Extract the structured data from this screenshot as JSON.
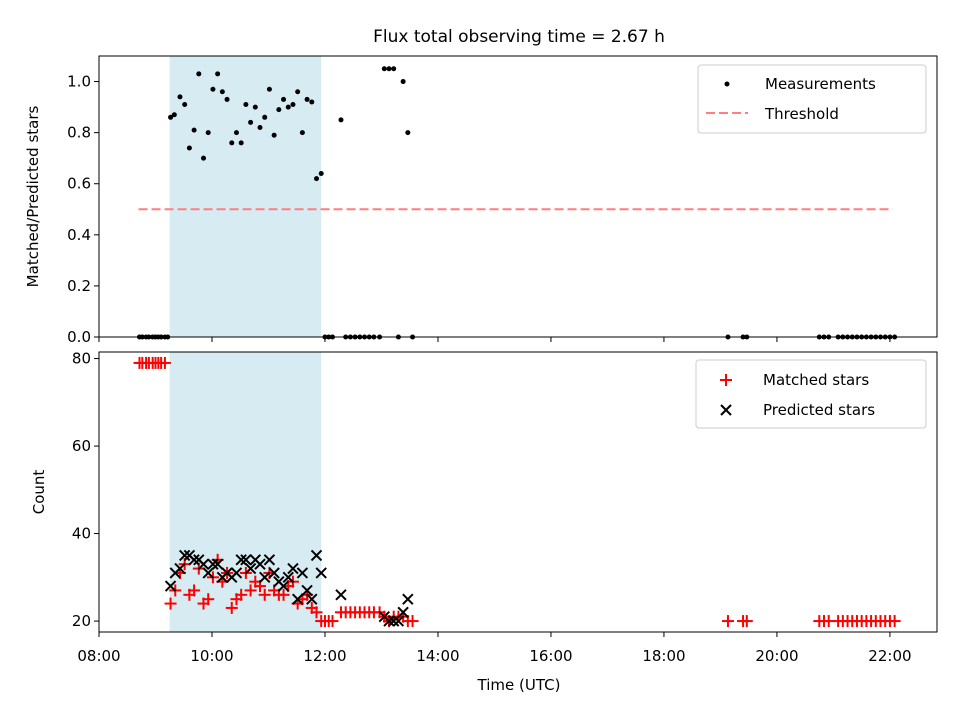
{
  "colors": {
    "measure": "#000000",
    "threshold": "#ff7f7f",
    "matched": "#ff0000",
    "predicted": "#000000",
    "span": "#add8e6"
  },
  "chart_data": [
    {
      "type": "scatter",
      "title": "Flux total observing time = 2.67 h",
      "xlabel": "",
      "ylabel": "Matched/Predicted stars",
      "xlim": [
        "08:00",
        "22:50"
      ],
      "ylim": [
        0,
        1.1
      ],
      "yticks": [
        "0.0",
        "0.2",
        "0.4",
        "0.6",
        "0.8",
        "1.0"
      ],
      "legend": {
        "position": "top-right",
        "entries": [
          "Measurements",
          "Threshold"
        ]
      },
      "highlight_span": [
        "09:15",
        "11:56"
      ],
      "threshold": {
        "value": 0.5,
        "x": [
          "08:42",
          "22:03"
        ]
      },
      "series": [
        {
          "name": "Measurements",
          "marker": "dot",
          "points": [
            [
              "08:43",
              0
            ],
            [
              "08:46",
              0
            ],
            [
              "08:50",
              0
            ],
            [
              "08:53",
              0
            ],
            [
              "08:57",
              0
            ],
            [
              "09:00",
              0
            ],
            [
              "09:03",
              0
            ],
            [
              "09:06",
              0
            ],
            [
              "09:10",
              0
            ],
            [
              "09:13",
              0
            ],
            [
              "09:16",
              0.86
            ],
            [
              "09:20",
              0.87
            ],
            [
              "09:26",
              0.94
            ],
            [
              "09:31",
              0.91
            ],
            [
              "09:36",
              0.74
            ],
            [
              "09:41",
              0.81
            ],
            [
              "09:46",
              1.03
            ],
            [
              "09:51",
              0.7
            ],
            [
              "09:56",
              0.8
            ],
            [
              "10:01",
              0.97
            ],
            [
              "10:06",
              1.03
            ],
            [
              "10:11",
              0.96
            ],
            [
              "10:16",
              0.93
            ],
            [
              "10:21",
              0.76
            ],
            [
              "10:26",
              0.8
            ],
            [
              "10:31",
              0.76
            ],
            [
              "10:36",
              0.91
            ],
            [
              "10:41",
              0.84
            ],
            [
              "10:46",
              0.9
            ],
            [
              "10:51",
              0.82
            ],
            [
              "10:56",
              0.86
            ],
            [
              "11:01",
              0.97
            ],
            [
              "11:06",
              0.79
            ],
            [
              "11:11",
              0.89
            ],
            [
              "11:16",
              0.93
            ],
            [
              "11:21",
              0.9
            ],
            [
              "11:26",
              0.91
            ],
            [
              "11:31",
              0.96
            ],
            [
              "11:36",
              0.8
            ],
            [
              "11:41",
              0.93
            ],
            [
              "11:46",
              0.92
            ],
            [
              "11:51",
              0.62
            ],
            [
              "11:56",
              0.64
            ],
            [
              "12:00",
              0
            ],
            [
              "12:04",
              0
            ],
            [
              "12:08",
              0
            ],
            [
              "12:17",
              0.85
            ],
            [
              "12:22",
              0
            ],
            [
              "12:27",
              0
            ],
            [
              "12:32",
              0
            ],
            [
              "12:37",
              0
            ],
            [
              "12:42",
              0
            ],
            [
              "12:47",
              0
            ],
            [
              "12:52",
              0
            ],
            [
              "12:58",
              0
            ],
            [
              "13:03",
              1.05
            ],
            [
              "13:08",
              1.05
            ],
            [
              "13:13",
              1.05
            ],
            [
              "13:18",
              0
            ],
            [
              "13:23",
              1.0
            ],
            [
              "13:28",
              0.8
            ],
            [
              "13:33",
              0
            ],
            [
              "19:08",
              0
            ],
            [
              "19:24",
              0
            ],
            [
              "19:28",
              0
            ],
            [
              "20:45",
              0
            ],
            [
              "20:50",
              0
            ],
            [
              "20:55",
              0
            ],
            [
              "21:05",
              0
            ],
            [
              "21:10",
              0
            ],
            [
              "21:15",
              0
            ],
            [
              "21:20",
              0
            ],
            [
              "21:25",
              0
            ],
            [
              "21:30",
              0
            ],
            [
              "21:35",
              0
            ],
            [
              "21:40",
              0
            ],
            [
              "21:45",
              0
            ],
            [
              "21:50",
              0
            ],
            [
              "21:55",
              0
            ],
            [
              "22:00",
              0
            ],
            [
              "22:05",
              0
            ]
          ]
        }
      ]
    },
    {
      "type": "scatter",
      "title": "",
      "xlabel": "Time (UTC)",
      "ylabel": "Count",
      "xlim": [
        "08:00",
        "22:50"
      ],
      "ylim": [
        17.5,
        81.5
      ],
      "xticks": [
        "08:00",
        "10:00",
        "12:00",
        "14:00",
        "16:00",
        "18:00",
        "20:00",
        "22:00"
      ],
      "yticks": [
        "20",
        "40",
        "60",
        "80"
      ],
      "legend": {
        "position": "top-right",
        "entries": [
          "Matched stars",
          "Predicted stars"
        ]
      },
      "highlight_span": [
        "09:15",
        "11:56"
      ],
      "series": [
        {
          "name": "Matched stars",
          "marker": "plus",
          "points": [
            [
              "08:43",
              79
            ],
            [
              "08:46",
              79
            ],
            [
              "08:50",
              79
            ],
            [
              "08:53",
              79
            ],
            [
              "08:57",
              79
            ],
            [
              "09:00",
              79
            ],
            [
              "09:03",
              79
            ],
            [
              "09:06",
              79
            ],
            [
              "09:10",
              79
            ],
            [
              "09:16",
              24
            ],
            [
              "09:21",
              27
            ],
            [
              "09:26",
              31
            ],
            [
              "09:31",
              33
            ],
            [
              "09:36",
              26
            ],
            [
              "09:41",
              27
            ],
            [
              "09:46",
              32
            ],
            [
              "09:51",
              24
            ],
            [
              "09:56",
              25
            ],
            [
              "10:01",
              30
            ],
            [
              "10:06",
              34
            ],
            [
              "10:11",
              29
            ],
            [
              "10:16",
              31
            ],
            [
              "10:21",
              23
            ],
            [
              "10:26",
              25
            ],
            [
              "10:31",
              26
            ],
            [
              "10:36",
              31
            ],
            [
              "10:41",
              27
            ],
            [
              "10:46",
              29
            ],
            [
              "10:51",
              28
            ],
            [
              "10:56",
              26
            ],
            [
              "11:01",
              31
            ],
            [
              "11:06",
              27
            ],
            [
              "11:11",
              26
            ],
            [
              "11:16",
              26
            ],
            [
              "11:21",
              28
            ],
            [
              "11:26",
              29
            ],
            [
              "11:31",
              24
            ],
            [
              "11:36",
              25
            ],
            [
              "11:41",
              26
            ],
            [
              "11:46",
              23
            ],
            [
              "11:51",
              22
            ],
            [
              "11:56",
              20
            ],
            [
              "12:00",
              20
            ],
            [
              "12:04",
              20
            ],
            [
              "12:08",
              20
            ],
            [
              "12:17",
              22
            ],
            [
              "12:22",
              22
            ],
            [
              "12:27",
              22
            ],
            [
              "12:32",
              22
            ],
            [
              "12:37",
              22
            ],
            [
              "12:42",
              22
            ],
            [
              "12:47",
              22
            ],
            [
              "12:52",
              22
            ],
            [
              "12:58",
              22
            ],
            [
              "13:03",
              21
            ],
            [
              "13:08",
              20
            ],
            [
              "13:13",
              21
            ],
            [
              "13:18",
              21
            ],
            [
              "13:23",
              21
            ],
            [
              "13:28",
              20
            ],
            [
              "13:33",
              20
            ],
            [
              "19:08",
              20
            ],
            [
              "19:24",
              20
            ],
            [
              "19:28",
              20
            ],
            [
              "20:45",
              20
            ],
            [
              "20:50",
              20
            ],
            [
              "20:55",
              20
            ],
            [
              "21:05",
              20
            ],
            [
              "21:10",
              20
            ],
            [
              "21:15",
              20
            ],
            [
              "21:20",
              20
            ],
            [
              "21:25",
              20
            ],
            [
              "21:30",
              20
            ],
            [
              "21:35",
              20
            ],
            [
              "21:40",
              20
            ],
            [
              "21:45",
              20
            ],
            [
              "21:50",
              20
            ],
            [
              "21:55",
              20
            ],
            [
              "22:00",
              20
            ],
            [
              "22:05",
              20
            ]
          ]
        },
        {
          "name": "Predicted stars",
          "marker": "x",
          "points": [
            [
              "09:16",
              28
            ],
            [
              "09:21",
              31
            ],
            [
              "09:26",
              32
            ],
            [
              "09:31",
              35
            ],
            [
              "09:36",
              35
            ],
            [
              "09:41",
              34
            ],
            [
              "09:46",
              34
            ],
            [
              "09:51",
              33
            ],
            [
              "09:56",
              31
            ],
            [
              "10:01",
              33
            ],
            [
              "10:06",
              33
            ],
            [
              "10:11",
              30
            ],
            [
              "10:16",
              31
            ],
            [
              "10:21",
              30
            ],
            [
              "10:26",
              31
            ],
            [
              "10:31",
              34
            ],
            [
              "10:36",
              34
            ],
            [
              "10:41",
              32
            ],
            [
              "10:46",
              34
            ],
            [
              "10:51",
              33
            ],
            [
              "10:56",
              30
            ],
            [
              "11:01",
              34
            ],
            [
              "11:06",
              31
            ],
            [
              "11:11",
              29
            ],
            [
              "11:16",
              28
            ],
            [
              "11:21",
              30
            ],
            [
              "11:26",
              32
            ],
            [
              "11:31",
              25
            ],
            [
              "11:36",
              31
            ],
            [
              "11:41",
              27
            ],
            [
              "11:46",
              25
            ],
            [
              "11:51",
              35
            ],
            [
              "11:56",
              31
            ],
            [
              "12:17",
              26
            ],
            [
              "13:03",
              21
            ],
            [
              "13:08",
              20
            ],
            [
              "13:13",
              20
            ],
            [
              "13:18",
              20
            ],
            [
              "13:23",
              22
            ],
            [
              "13:28",
              25
            ]
          ]
        }
      ]
    }
  ]
}
